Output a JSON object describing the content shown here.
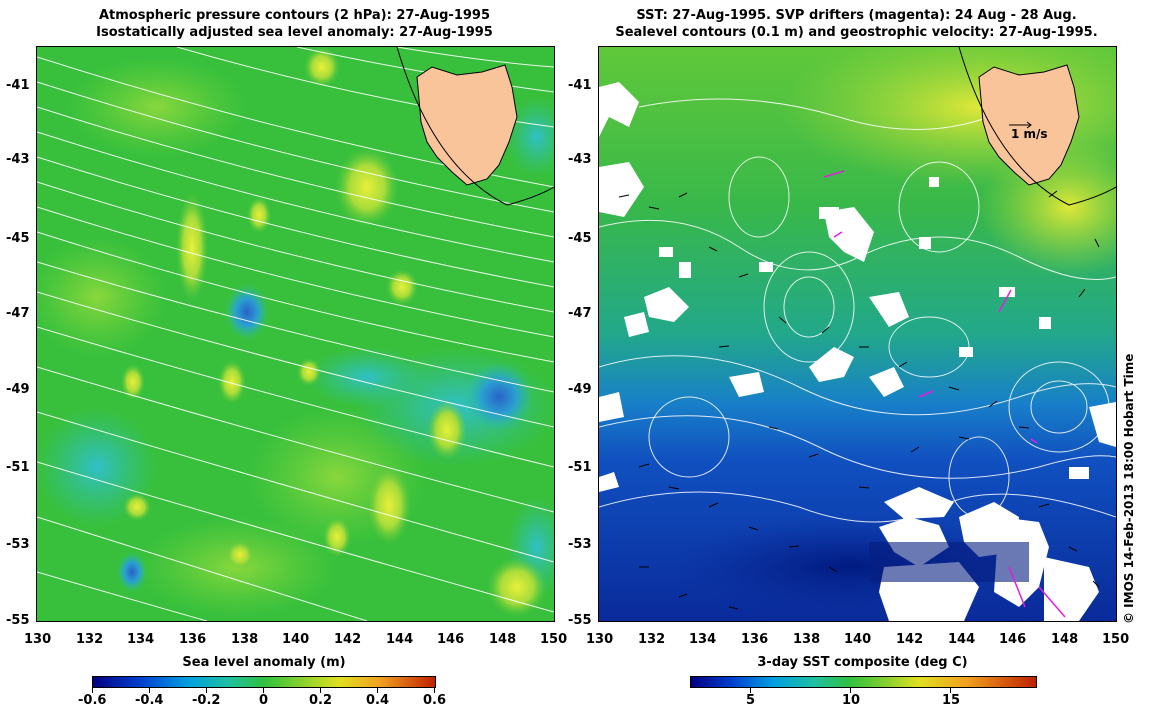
{
  "left_panel": {
    "title_line1": "Atmospheric pressure contours (2 hPa): 27-Aug-1995",
    "title_line2": "Isostatically adjusted sea level anomaly: 27-Aug-1995",
    "y_ticks": [
      "-41",
      "-43",
      "-45",
      "-47",
      "-49",
      "-51",
      "-53",
      "-55"
    ],
    "x_ticks": [
      "130",
      "132",
      "134",
      "136",
      "138",
      "140",
      "142",
      "144",
      "146",
      "148",
      "150"
    ],
    "colorbar_title": "Sea level anomaly (m)",
    "colorbar_ticks": [
      "-0.6",
      "-0.4",
      "-0.2",
      "0",
      "0.2",
      "0.4",
      "0.6"
    ]
  },
  "right_panel": {
    "title_line1": "SST: 27-Aug-1995. SVP drifters (magenta): 24 Aug - 28 Aug.",
    "title_line2": "Sealevel contours (0.1 m) and geostrophic velocity: 27-Aug-1995.",
    "y_ticks": [
      "-41",
      "-43",
      "-45",
      "-47",
      "-49",
      "-51",
      "-53",
      "-55"
    ],
    "x_ticks": [
      "130",
      "132",
      "134",
      "136",
      "138",
      "140",
      "142",
      "144",
      "146",
      "148",
      "150"
    ],
    "velocity_scale_label": "1 m/s",
    "colorbar_title": "3-day SST composite (deg C)",
    "colorbar_ticks": [
      "5",
      "10",
      "15"
    ]
  },
  "credit": "© IMOS 14-Feb-2013 18:00 Hobart Time",
  "colors": {
    "land": "#f9c49a",
    "slm_base": "#3cc23c",
    "sst_cold": "#0a2aa0",
    "sst_warm": "#c8e03c",
    "drifters": "#e020e0"
  }
}
